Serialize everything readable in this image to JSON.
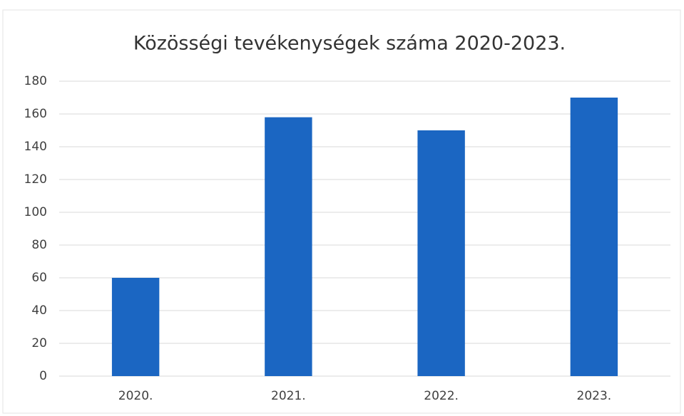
{
  "chart_data": {
    "type": "bar",
    "title": "Közösségi tevékenységek száma 2020-2023.",
    "categories": [
      "2020.",
      "2021.",
      "2022.",
      "2023."
    ],
    "values": [
      60,
      158,
      150,
      170
    ],
    "color": "#1b66c2",
    "ylim": [
      0,
      180
    ],
    "yticks": [
      0,
      20,
      40,
      60,
      80,
      100,
      120,
      140,
      160,
      180
    ],
    "grid": true
  }
}
